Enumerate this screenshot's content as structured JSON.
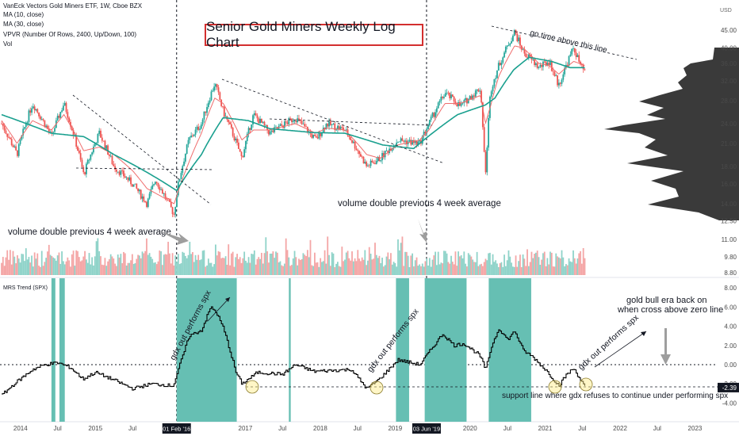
{
  "header": {
    "symbol_line": "VanEck Vectors Gold Miners ETF, 1W, Cboe BZX",
    "ma10": "MA (10, close)",
    "ma30": "MA (30, close)",
    "vpvr": "VPVR (Number Of Rows, 2400, Up/Down, 100)",
    "vol": "Vol",
    "currency": "USD"
  },
  "chart_data": {
    "type": "line",
    "title": "Senior Gold Miners Weekly Log Chart",
    "price_axis": {
      "scale": "log",
      "ticks": [
        "45.00",
        "40.00",
        "36.00",
        "32.00",
        "28.00",
        "24.00",
        "21.00",
        "18.00",
        "16.00",
        "14.00",
        "12.50",
        "11.00",
        "9.80",
        "8.80"
      ]
    },
    "price_path": [
      [
        "2013-10-01",
        24.0
      ],
      [
        "2013-12-15",
        19.5
      ],
      [
        "2014-03-01",
        27.5
      ],
      [
        "2014-06-01",
        22.0
      ],
      [
        "2014-08-01",
        27.5
      ],
      [
        "2014-11-05",
        17.0
      ],
      [
        "2015-01-20",
        22.5
      ],
      [
        "2015-04-01",
        18.0
      ],
      [
        "2015-07-01",
        16.0
      ],
      [
        "2015-09-10",
        14.0
      ],
      [
        "2015-10-20",
        16.5
      ],
      [
        "2016-01-20",
        13.0
      ],
      [
        "2016-02-05",
        15.5
      ],
      [
        "2016-04-01",
        21.5
      ],
      [
        "2016-06-01",
        24.0
      ],
      [
        "2016-08-05",
        31.5
      ],
      [
        "2016-09-15",
        26.0
      ],
      [
        "2016-12-15",
        19.0
      ],
      [
        "2017-02-10",
        25.5
      ],
      [
        "2017-05-01",
        22.5
      ],
      [
        "2017-09-01",
        25.0
      ],
      [
        "2017-12-10",
        21.5
      ],
      [
        "2018-02-01",
        24.0
      ],
      [
        "2018-05-01",
        23.0
      ],
      [
        "2018-08-15",
        18.0
      ],
      [
        "2018-10-20",
        19.0
      ],
      [
        "2019-01-15",
        21.5
      ],
      [
        "2019-04-30",
        21.0
      ],
      [
        "2019-06-15",
        24.0
      ],
      [
        "2019-09-01",
        29.5
      ],
      [
        "2019-11-15",
        27.0
      ],
      [
        "2020-02-20",
        30.5
      ],
      [
        "2020-03-16",
        16.5
      ],
      [
        "2020-04-10",
        30.0
      ],
      [
        "2020-05-20",
        35.5
      ],
      [
        "2020-08-05",
        44.5
      ],
      [
        "2020-09-15",
        39.0
      ],
      [
        "2020-12-01",
        35.0
      ],
      [
        "2021-01-20",
        36.5
      ],
      [
        "2021-03-08",
        31.0
      ],
      [
        "2021-05-20",
        40.0
      ],
      [
        "2021-06-25",
        35.0
      ],
      [
        "2021-07-15",
        34.0
      ]
    ],
    "ma30_path": [
      [
        "2013-10-01",
        25.5
      ],
      [
        "2014-06-01",
        22.5
      ],
      [
        "2014-11-05",
        22.0
      ],
      [
        "2015-04-01",
        19.5
      ],
      [
        "2015-10-01",
        17.0
      ],
      [
        "2016-02-01",
        15.3
      ],
      [
        "2016-06-01",
        19.5
      ],
      [
        "2016-09-15",
        25.0
      ],
      [
        "2017-01-15",
        24.5
      ],
      [
        "2017-05-01",
        23.2
      ],
      [
        "2017-12-01",
        22.6
      ],
      [
        "2018-05-01",
        22.5
      ],
      [
        "2018-11-01",
        20.8
      ],
      [
        "2019-04-01",
        20.3
      ],
      [
        "2019-07-01",
        22.5
      ],
      [
        "2019-11-01",
        25.5
      ],
      [
        "2020-03-15",
        27.2
      ],
      [
        "2020-05-01",
        28.5
      ],
      [
        "2020-08-01",
        34.5
      ],
      [
        "2020-10-15",
        37.5
      ],
      [
        "2021-02-01",
        36.5
      ],
      [
        "2021-05-01",
        35.0
      ],
      [
        "2021-07-15",
        35.0
      ]
    ],
    "ma10_path": [
      [
        "2013-10-01",
        24.5
      ],
      [
        "2013-12-15",
        21.0
      ],
      [
        "2014-03-01",
        24.5
      ],
      [
        "2014-06-01",
        23.0
      ],
      [
        "2014-08-01",
        25.5
      ],
      [
        "2014-11-05",
        20.0
      ],
      [
        "2015-01-20",
        20.5
      ],
      [
        "2015-04-01",
        19.5
      ],
      [
        "2015-07-01",
        17.5
      ],
      [
        "2015-09-10",
        15.5
      ],
      [
        "2016-01-20",
        14.0
      ],
      [
        "2016-04-01",
        18.5
      ],
      [
        "2016-06-01",
        22.5
      ],
      [
        "2016-08-05",
        28.5
      ],
      [
        "2016-09-15",
        27.5
      ],
      [
        "2016-12-15",
        21.5
      ],
      [
        "2017-02-10",
        23.0
      ],
      [
        "2017-05-01",
        23.0
      ],
      [
        "2017-09-01",
        24.0
      ],
      [
        "2017-12-10",
        22.5
      ],
      [
        "2018-02-01",
        23.3
      ],
      [
        "2018-05-01",
        23.0
      ],
      [
        "2018-08-15",
        19.5
      ],
      [
        "2018-10-20",
        19.0
      ],
      [
        "2019-01-15",
        20.8
      ],
      [
        "2019-04-30",
        21.5
      ],
      [
        "2019-06-15",
        23.0
      ],
      [
        "2019-09-01",
        27.5
      ],
      [
        "2019-11-15",
        27.5
      ],
      [
        "2020-02-20",
        29.0
      ],
      [
        "2020-03-16",
        24.0
      ],
      [
        "2020-04-10",
        27.0
      ],
      [
        "2020-05-20",
        33.0
      ],
      [
        "2020-08-05",
        40.5
      ],
      [
        "2020-09-15",
        40.0
      ],
      [
        "2020-12-01",
        36.0
      ],
      [
        "2021-01-20",
        35.5
      ],
      [
        "2021-03-08",
        33.5
      ],
      [
        "2021-05-20",
        36.5
      ],
      [
        "2021-07-15",
        35.5
      ]
    ],
    "mrs_panel": {
      "label": "MRS Trend (SPX)",
      "ticks": [
        "8.00",
        "6.00",
        "4.00",
        "2.00",
        "0.00",
        "-2.00",
        "-4.00"
      ],
      "current_value": "-2.39",
      "path": [
        [
          "2013-10-01",
          -3.2
        ],
        [
          "2013-12-01",
          -2.0
        ],
        [
          "2014-03-01",
          -0.5
        ],
        [
          "2014-05-01",
          0.0
        ],
        [
          "2014-07-01",
          0.2
        ],
        [
          "2014-09-01",
          -0.3
        ],
        [
          "2014-11-01",
          -1.5
        ],
        [
          "2015-01-01",
          -0.8
        ],
        [
          "2015-04-01",
          -1.6
        ],
        [
          "2015-07-01",
          -2.5
        ],
        [
          "2015-10-01",
          -2.0
        ],
        [
          "2016-01-15",
          -2.2
        ],
        [
          "2016-02-01",
          -1.0
        ],
        [
          "2016-04-01",
          3.0
        ],
        [
          "2016-06-01",
          3.6
        ],
        [
          "2016-07-15",
          6.0
        ],
        [
          "2016-08-10",
          5.5
        ],
        [
          "2016-09-15",
          3.8
        ],
        [
          "2016-10-10",
          2.0
        ],
        [
          "2016-11-15",
          -0.8
        ],
        [
          "2016-12-15",
          -2.0
        ],
        [
          "2017-03-01",
          -0.8
        ],
        [
          "2017-07-01",
          -1.0
        ],
        [
          "2017-09-01",
          0.0
        ],
        [
          "2017-12-01",
          -0.7
        ],
        [
          "2018-03-01",
          -0.6
        ],
        [
          "2018-06-01",
          -0.5
        ],
        [
          "2018-08-15",
          -2.5
        ],
        [
          "2018-10-15",
          -1.5
        ],
        [
          "2019-01-15",
          0.5
        ],
        [
          "2019-05-01",
          0.0
        ],
        [
          "2019-07-01",
          1.8
        ],
        [
          "2019-08-20",
          3.2
        ],
        [
          "2019-10-15",
          2.0
        ],
        [
          "2019-12-01",
          2.2
        ],
        [
          "2020-02-15",
          1.0
        ],
        [
          "2020-03-16",
          -0.5
        ],
        [
          "2020-04-15",
          2.0
        ],
        [
          "2020-05-20",
          3.8
        ],
        [
          "2020-07-01",
          2.6
        ],
        [
          "2020-08-05",
          3.5
        ],
        [
          "2020-09-15",
          1.5
        ],
        [
          "2020-11-01",
          0.8
        ],
        [
          "2021-01-01",
          -0.5
        ],
        [
          "2021-03-08",
          -2.2
        ],
        [
          "2021-04-15",
          -1.0
        ],
        [
          "2021-05-20",
          -0.4
        ],
        [
          "2021-07-15",
          -2.4
        ]
      ],
      "shaded_periods": [
        [
          "2014-06-01",
          "2014-06-20"
        ],
        [
          "2014-07-10",
          "2014-08-05"
        ],
        [
          "2016-02-01",
          "2016-11-20"
        ],
        [
          "2017-08-01",
          "2017-08-10"
        ],
        [
          "2019-01-05",
          "2019-03-10"
        ],
        [
          "2019-05-25",
          "2019-12-15"
        ],
        [
          "2020-04-01",
          "2020-10-25"
        ]
      ],
      "highlight_color": "#66bfb3"
    },
    "time_axis": {
      "ticks": [
        [
          "Jul",
          "2013-07-01"
        ],
        [
          "2014",
          "2014-01-01"
        ],
        [
          "Jul",
          "2014-07-01"
        ],
        [
          "2015",
          "2015-01-01"
        ],
        [
          "Jul",
          "2015-07-01"
        ],
        [
          "2017",
          "2017-01-01"
        ],
        [
          "Jul",
          "2017-07-01"
        ],
        [
          "2018",
          "2018-01-01"
        ],
        [
          "Jul",
          "2018-07-01"
        ],
        [
          "2019",
          "2019-01-01"
        ],
        [
          "2020",
          "2020-01-01"
        ],
        [
          "Jul",
          "2020-07-01"
        ],
        [
          "2021",
          "2021-01-01"
        ],
        [
          "Jul",
          "2021-07-01"
        ],
        [
          "2022",
          "2022-01-01"
        ],
        [
          "Jul",
          "2022-07-01"
        ],
        [
          "2023",
          "2023-01-01"
        ]
      ],
      "markers": [
        [
          "01 Feb '16",
          "2016-02-01"
        ],
        [
          "03 Jun '19",
          "2019-06-03"
        ]
      ]
    },
    "annotations": {
      "go_time": "go time above this line",
      "volume1": "volume double previous 4 week average",
      "volume2": "volume double previous 4 week average",
      "outperform": "gdx out performs spx",
      "bull_era_1": "gold bull era back on",
      "bull_era_2": "when cross above zero line",
      "support": "support line where gdx refuses to continue under performing spx"
    },
    "colors": {
      "up": "#26a69a",
      "down": "#ef5350",
      "ma10": "#ef6c6c",
      "ma30": "#1aa08f",
      "title_border": "#d32f2f"
    }
  }
}
